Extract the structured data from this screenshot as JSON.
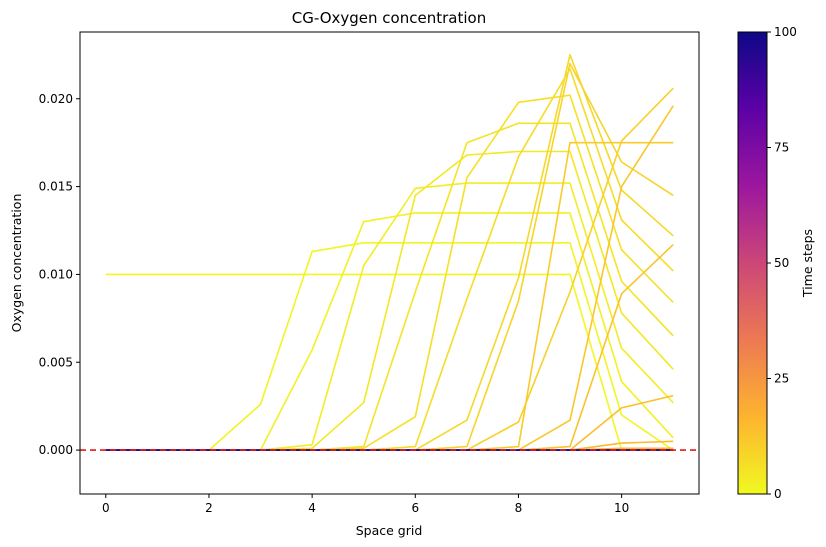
{
  "chart_data": {
    "type": "line",
    "title": "CG-Oxygen concentration",
    "xlabel": "Space grid",
    "ylabel": "Oxygen concentration",
    "xlim": [
      -0.5,
      11.5
    ],
    "ylim": [
      -0.0025,
      0.0238
    ],
    "xticks": [
      0,
      2,
      4,
      6,
      8,
      10
    ],
    "yticks": [
      0.0,
      0.005,
      0.01,
      0.015,
      0.02
    ],
    "ytick_labels": [
      "0.000",
      "0.005",
      "0.010",
      "0.015",
      "0.020"
    ],
    "x": [
      0,
      1,
      2,
      3,
      4,
      5,
      6,
      7,
      8,
      9,
      10,
      11
    ],
    "reference_line": {
      "y": 0.0,
      "color": "#e31a1c",
      "style": "dashed"
    },
    "colorbar": {
      "label": "Time steps",
      "range": [
        0,
        100
      ],
      "ticks": [
        0,
        25,
        50,
        75,
        100
      ],
      "colormap": "plasma_r",
      "stops": [
        "#f0f921",
        "#fdb42f",
        "#ed7953",
        "#cc4778",
        "#9c179e",
        "#5c01a6",
        "#0d0887"
      ]
    },
    "series": [
      {
        "t": 0,
        "values": [
          0.01,
          0.01,
          0.01,
          0.01,
          0.01,
          0.01,
          0.01,
          0.01,
          0.01,
          0.01,
          0.0,
          0.0
        ]
      },
      {
        "t": 1,
        "values": [
          0.0,
          0.0,
          0.0,
          0.0026,
          0.0113,
          0.0118,
          0.0118,
          0.0118,
          0.0118,
          0.0118,
          0.002,
          0.0
        ]
      },
      {
        "t": 2,
        "values": [
          0.0,
          0.0,
          0.0,
          0.0,
          0.0057,
          0.013,
          0.0135,
          0.0135,
          0.0135,
          0.0135,
          0.0039,
          0.0007
        ]
      },
      {
        "t": 3,
        "values": [
          0.0,
          0.0,
          0.0,
          0.0,
          0.0003,
          0.0105,
          0.0149,
          0.0152,
          0.0152,
          0.0152,
          0.0058,
          0.0027
        ]
      },
      {
        "t": 4,
        "values": [
          0.0,
          0.0,
          0.0,
          0.0,
          0.0001,
          0.0027,
          0.0145,
          0.0168,
          0.017,
          0.017,
          0.0078,
          0.0046
        ]
      },
      {
        "t": 5,
        "values": [
          0.0,
          0.0,
          0.0,
          0.0,
          0.0,
          0.0002,
          0.009,
          0.0175,
          0.0186,
          0.0186,
          0.0096,
          0.0065
        ]
      },
      {
        "t": 6,
        "values": [
          0.0,
          0.0,
          0.0,
          0.0,
          0.0,
          0.0001,
          0.0019,
          0.0155,
          0.0198,
          0.0202,
          0.0114,
          0.0084
        ]
      },
      {
        "t": 7,
        "values": [
          0.0,
          0.0,
          0.0,
          0.0,
          0.0,
          0.0,
          0.0002,
          0.0086,
          0.0167,
          0.0217,
          0.0131,
          0.0102
        ]
      },
      {
        "t": 8,
        "values": [
          0.0,
          0.0,
          0.0,
          0.0,
          0.0,
          0.0,
          0.0,
          0.0017,
          0.0098,
          0.0225,
          0.0148,
          0.0122
        ]
      },
      {
        "t": 9,
        "values": [
          0.0,
          0.0,
          0.0,
          0.0,
          0.0,
          0.0,
          0.0,
          0.0002,
          0.0085,
          0.022,
          0.0164,
          0.0145
        ]
      },
      {
        "t": 10,
        "values": [
          0.0,
          0.0,
          0.0,
          0.0,
          0.0,
          0.0,
          0.0,
          0.0,
          0.0016,
          0.009,
          0.0176,
          0.0206
        ]
      },
      {
        "t": 11,
        "values": [
          0.0,
          0.0,
          0.0,
          0.0,
          0.0,
          0.0,
          0.0,
          0.0,
          0.0002,
          0.0175,
          0.0175,
          0.0175
        ]
      },
      {
        "t": 12,
        "values": [
          0.0,
          0.0,
          0.0,
          0.0,
          0.0,
          0.0,
          0.0,
          0.0,
          0.0,
          0.0017,
          0.015,
          0.0196
        ]
      },
      {
        "t": 13,
        "values": [
          0.0,
          0.0,
          0.0,
          0.0,
          0.0,
          0.0,
          0.0,
          0.0,
          0.0,
          0.0002,
          0.0089,
          0.0117
        ]
      },
      {
        "t": 14,
        "values": [
          0.0,
          0.0,
          0.0,
          0.0,
          0.0,
          0.0,
          0.0,
          0.0,
          0.0,
          0.0,
          0.0024,
          0.0031
        ]
      },
      {
        "t": 15,
        "values": [
          0.0,
          0.0,
          0.0,
          0.0,
          0.0,
          0.0,
          0.0,
          0.0,
          0.0,
          0.0,
          0.0004,
          0.0005
        ]
      },
      {
        "t": 16,
        "values": [
          0.0,
          0.0,
          0.0,
          0.0,
          0.0,
          0.0,
          0.0,
          0.0,
          0.0,
          0.0,
          0.0001,
          0.0001
        ]
      },
      {
        "t": 30,
        "values": [
          0.0,
          0.0,
          0.0,
          0.0,
          0.0,
          0.0,
          0.0,
          0.0,
          0.0,
          0.0,
          0.0,
          0.0
        ]
      },
      {
        "t": 60,
        "values": [
          0.0,
          0.0,
          0.0,
          0.0,
          0.0,
          0.0,
          0.0,
          0.0,
          0.0,
          0.0,
          0.0,
          0.0
        ]
      },
      {
        "t": 100,
        "values": [
          0.0,
          0.0,
          0.0,
          0.0,
          0.0,
          0.0,
          0.0,
          0.0,
          0.0,
          0.0,
          0.0,
          0.0
        ]
      }
    ]
  }
}
